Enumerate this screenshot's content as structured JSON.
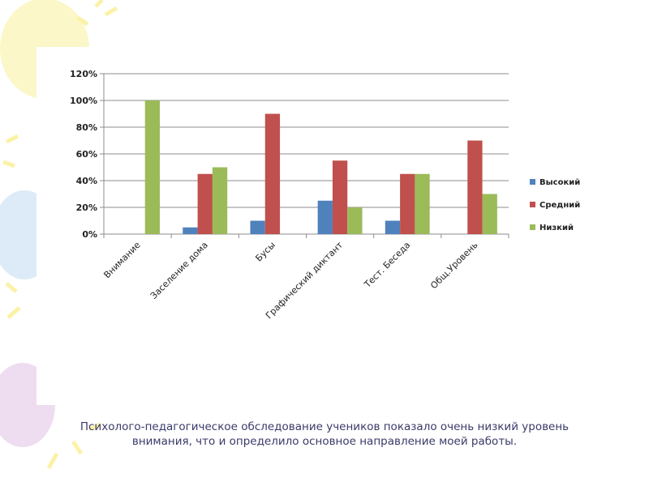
{
  "caption": {
    "line1": "Психолого-педагогическое обследование учеников показало очень низкий уровень",
    "line2": "внимания, что и определило основное направление моей работы."
  },
  "chart_data": {
    "type": "bar",
    "categories": [
      "Внимание",
      "Заселение дома",
      "Бусы",
      "Графический диктант",
      "Тест. Беседа",
      "Общ.Уровень"
    ],
    "series": [
      {
        "name": "Высокий",
        "color": "#4f81bd",
        "values": [
          0,
          5,
          10,
          25,
          10,
          0
        ]
      },
      {
        "name": "Средний",
        "color": "#c0504d",
        "values": [
          0,
          45,
          90,
          55,
          45,
          70
        ]
      },
      {
        "name": "Низкий",
        "color": "#9bbb59",
        "values": [
          100,
          50,
          0,
          20,
          45,
          30
        ]
      }
    ],
    "yticks": [
      "0%",
      "20%",
      "40%",
      "60%",
      "80%",
      "100%",
      "120%"
    ],
    "ylim": [
      0,
      120
    ],
    "grid": true,
    "legend_position": "right",
    "title": "",
    "xlabel": "",
    "ylabel": ""
  }
}
